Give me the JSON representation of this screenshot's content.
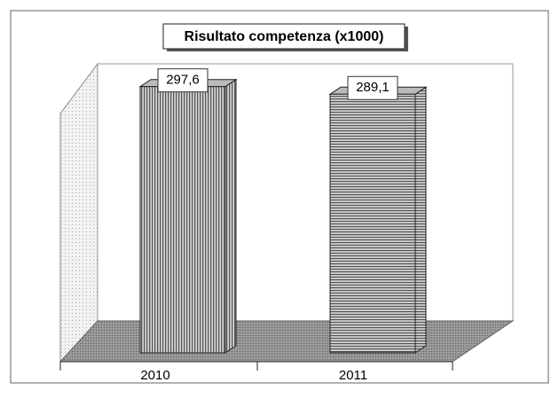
{
  "chart_data": {
    "type": "bar3d",
    "title": "Risultato competenza (x1000)",
    "categories": [
      "2010",
      "2011"
    ],
    "values": [
      297.6,
      289.1
    ],
    "value_labels": [
      "297,6",
      "289,1"
    ],
    "ylim": [
      0,
      330
    ]
  }
}
